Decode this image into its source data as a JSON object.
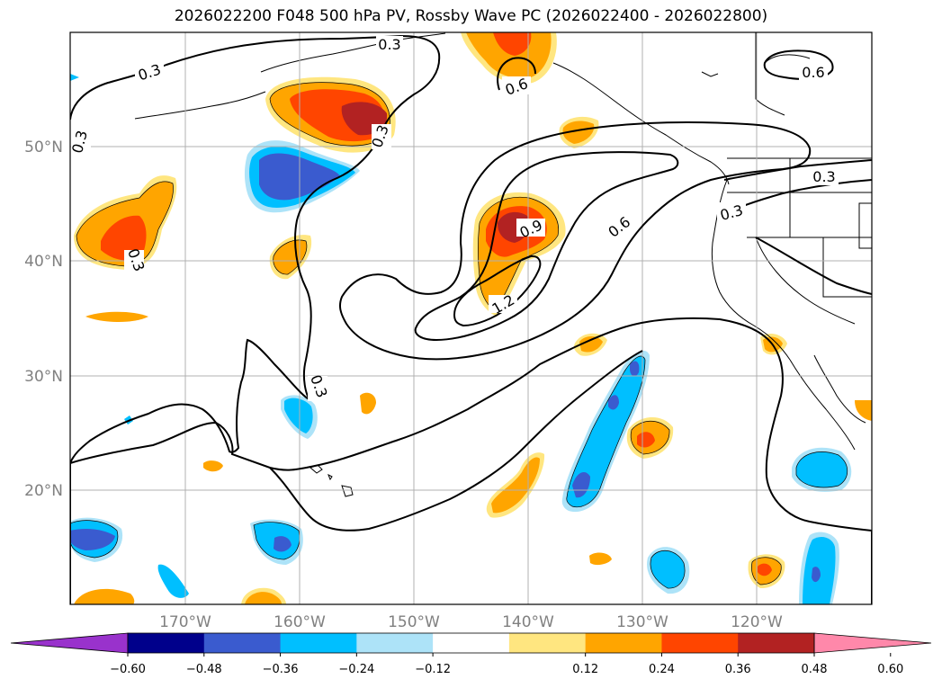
{
  "title": "2026022200 F048 500 hPa PV, Rossby Wave PC (2026022400 - 2026022800)",
  "latitude_labels": [
    "50°N",
    "40°N",
    "30°N",
    "20°N"
  ],
  "longitude_labels": [
    "170°W",
    "160°W",
    "150°W",
    "140°W",
    "130°W",
    "120°W"
  ],
  "contour_labels": [
    "0.3",
    "0.3",
    "0.3",
    "0.3",
    "0.3",
    "0.3",
    "0.3",
    "0.3",
    "0.6",
    "0.6",
    "0.6",
    "0.9",
    "1.2"
  ],
  "colorbar": {
    "tick_labels": [
      "−0.60",
      "−0.48",
      "−0.36",
      "−0.24",
      "−0.12",
      "0.12",
      "0.24",
      "0.36",
      "0.48",
      "0.60"
    ],
    "colors": [
      "#9932cc",
      "#00008b",
      "#3a5bcf",
      "#00bfff",
      "#ade3f8",
      "#ffffff",
      "#ffe680",
      "#ffa500",
      "#ff4500",
      "#b22222",
      "#ff88aa"
    ]
  },
  "fill_colors": {
    "light_yellow": "#ffe680",
    "orange": "#ffa500",
    "orange_red": "#ff4500",
    "dark_red": "#b22222",
    "light_blue": "#ade3f8",
    "deep_sky_blue": "#00bfff",
    "royal_blue": "#3a5bcf"
  }
}
